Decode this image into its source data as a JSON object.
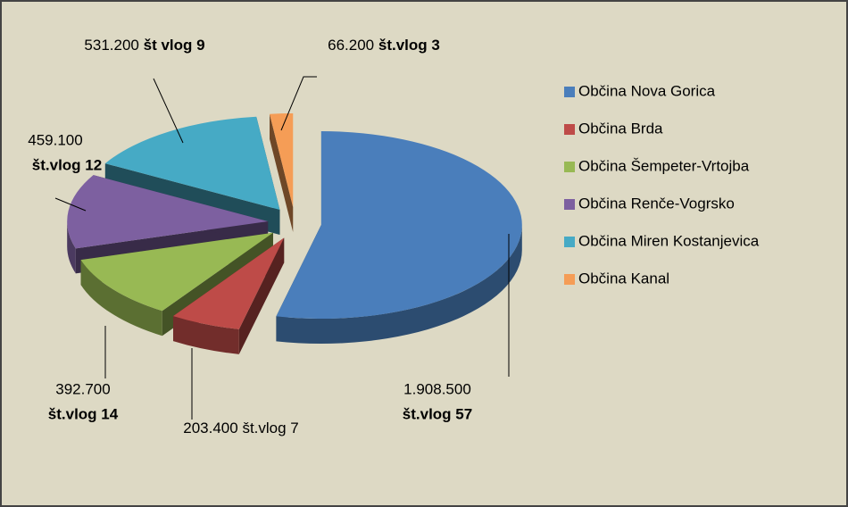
{
  "chart_data": {
    "type": "pie",
    "categories": [
      "Občina Nova Gorica",
      "Občina Brda",
      "Občina Šempeter-Vrtojba",
      "Občina Renče-Vogrsko",
      "Občina Miren Kostanjevica",
      "Občina Kanal"
    ],
    "values": [
      1908500,
      203400,
      392700,
      459100,
      531200,
      66200
    ],
    "value_labels": [
      "1.908.500",
      "203.400",
      "392.700",
      "459.100",
      "531.200",
      "66.200"
    ],
    "counts": [
      57,
      7,
      14,
      12,
      9,
      3
    ],
    "count_labels": [
      "št.vlog 57",
      "št.vlog 7",
      "št.vlog 14",
      "št.vlog 12",
      "št vlog 9",
      "št.vlog 3"
    ],
    "colors": [
      "#4a7ebb",
      "#be4b48",
      "#98b954",
      "#7d60a0",
      "#46aac5",
      "#f59d56"
    ],
    "legend": "right"
  }
}
